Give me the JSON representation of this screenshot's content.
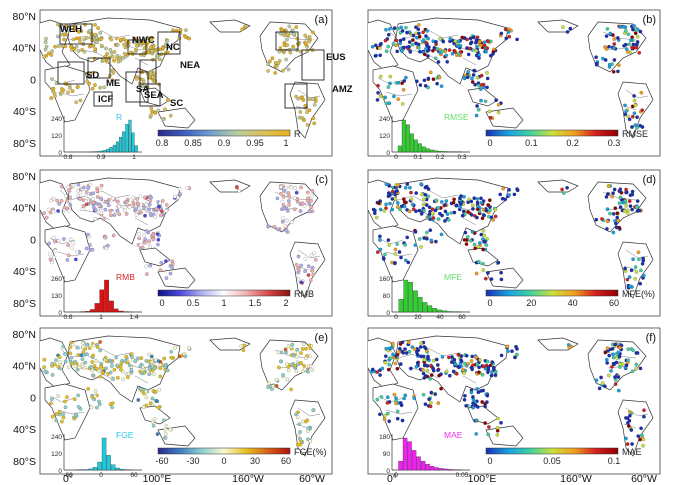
{
  "figure": {
    "lat_labels": [
      "80°N",
      "40°N",
      "0",
      "40°S",
      "80°S"
    ],
    "lon_labels": [
      "0°",
      "100°E",
      "160°W",
      "60°W"
    ],
    "region_labels": [
      "WEH",
      "NWC",
      "NC",
      "NEA",
      "EUS",
      "SD",
      "ME",
      "SC",
      "SA",
      "AMZ",
      "ICF",
      "SEA"
    ]
  },
  "panels": [
    {
      "id": "a",
      "tag": "(a)",
      "metric": "R",
      "hist_label": "R",
      "hist_label_color": "#40c0f0",
      "hist_color": "#22c8d8",
      "hist_counts": [
        0,
        0,
        0,
        0,
        0,
        0,
        0,
        0,
        1,
        2,
        3,
        5,
        9,
        14,
        22,
        33,
        48,
        70,
        95,
        130,
        150,
        90,
        30
      ],
      "hist_y_ticks": [
        "240",
        "120",
        "0"
      ],
      "hist_x_ticks": [
        "0.8",
        "0.9",
        "1"
      ],
      "colorbar_ticks": [
        "0.8",
        "0.85",
        "0.9",
        "0.95",
        "1"
      ],
      "colorbar_label": "R",
      "colormap": [
        "#2a2a8a",
        "#3d5ec0",
        "#6f9fcf",
        "#b9cda0",
        "#dcc05a",
        "#e6b222"
      ]
    },
    {
      "id": "b",
      "tag": "(b)",
      "metric": "RMSE",
      "hist_label": "RMSE",
      "hist_label_color": "#66dd66",
      "hist_color": "#33cc33",
      "hist_counts": [
        0,
        40,
        210,
        180,
        120,
        80,
        55,
        35,
        22,
        14,
        9,
        6,
        4,
        3,
        2,
        1,
        1,
        0
      ],
      "hist_y_ticks": [
        "240",
        "120",
        "0"
      ],
      "hist_x_ticks": [
        "0",
        "0.1",
        "0.2",
        "0.3"
      ],
      "colorbar_ticks": [
        "0",
        "0.1",
        "0.2",
        "0.3"
      ],
      "colorbar_label": "RMSE",
      "colormap": [
        "#1a2fb0",
        "#1aa0e0",
        "#40d0a0",
        "#c8e040",
        "#f0a020",
        "#d02020",
        "#900000"
      ]
    },
    {
      "id": "c",
      "tag": "(c)",
      "metric": "RMB",
      "hist_label": "RMB",
      "hist_label_color": "#dd2222",
      "hist_color": "#dd1111",
      "hist_counts": [
        0,
        0,
        0,
        2,
        6,
        20,
        70,
        180,
        260,
        90,
        25,
        8,
        3,
        1,
        0
      ],
      "hist_y_ticks": [
        "260",
        "130",
        "0"
      ],
      "hist_x_ticks": [
        "0.6",
        "1",
        "1.4"
      ],
      "colorbar_ticks": [
        "0",
        "0.5",
        "1",
        "1.5",
        "2"
      ],
      "colorbar_label": "RMB",
      "colormap": [
        "#10108a",
        "#4a4ad8",
        "#b0b0f0",
        "#ffffff",
        "#f0b0b0",
        "#d84a4a",
        "#8a1010"
      ]
    },
    {
      "id": "d",
      "tag": "(d)",
      "metric": "MFE",
      "hist_label": "MFE",
      "hist_label_color": "#66dd66",
      "hist_color": "#33cc33",
      "hist_counts": [
        0,
        60,
        150,
        140,
        100,
        70,
        45,
        30,
        18,
        10,
        6,
        3,
        2,
        1,
        0
      ],
      "hist_y_ticks": [
        "160",
        "80",
        "0"
      ],
      "hist_x_ticks": [
        "0",
        "20",
        "40",
        "60"
      ],
      "colorbar_ticks": [
        "0",
        "20",
        "40",
        "60"
      ],
      "colorbar_label": "MFE(%)",
      "colormap": [
        "#1a2fb0",
        "#1aa0e0",
        "#40d0a0",
        "#c8e040",
        "#f0a020",
        "#d02020",
        "#900000"
      ]
    },
    {
      "id": "e",
      "tag": "(e)",
      "metric": "FGE",
      "hist_label": "FGE",
      "hist_label_color": "#22c8e8",
      "hist_color": "#22c8d8",
      "hist_counts": [
        0,
        0,
        1,
        2,
        4,
        8,
        20,
        60,
        240,
        110,
        40,
        15,
        6,
        3,
        1,
        0
      ],
      "hist_y_ticks": [
        "240",
        "120",
        "0"
      ],
      "hist_x_ticks": [
        "-60",
        "0",
        "60"
      ],
      "colorbar_ticks": [
        "-60",
        "-30",
        "0",
        "30",
        "60"
      ],
      "colorbar_label": "FGE(%)",
      "colormap": [
        "#2a2a8a",
        "#3d7ec0",
        "#8fcfd0",
        "#f8f8d0",
        "#e6c222",
        "#d86018",
        "#b01010"
      ]
    },
    {
      "id": "f",
      "tag": "(f)",
      "metric": "MAE",
      "hist_label": "MAE",
      "hist_label_color": "#ee33ee",
      "hist_color": "#ee22ee",
      "hist_counts": [
        0,
        50,
        180,
        160,
        110,
        75,
        50,
        33,
        22,
        14,
        9,
        6,
        4,
        2,
        1,
        0
      ],
      "hist_y_ticks": [
        "180",
        "90",
        "0"
      ],
      "hist_x_ticks": [
        "0",
        "0.05"
      ],
      "colorbar_ticks": [
        "0",
        "0.05",
        "0.1"
      ],
      "colorbar_label": "MAE",
      "colormap": [
        "#1a2fb0",
        "#1aa0e0",
        "#40d0a0",
        "#c8e040",
        "#f0a020",
        "#d02020",
        "#900000"
      ]
    }
  ]
}
